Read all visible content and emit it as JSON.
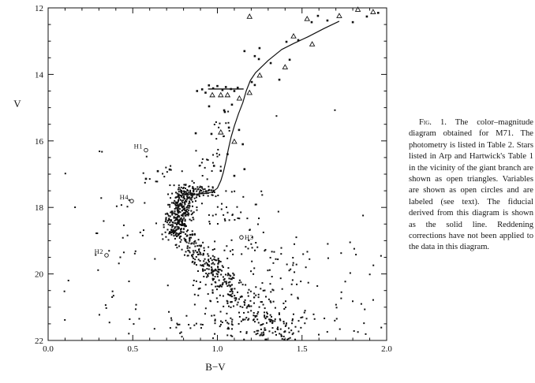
{
  "figure": {
    "caption_label": "Fig. 1.",
    "caption_text": "The color–magnitude diagram obtained for M71. The photometry is listed in Table 2. Stars listed in Arp and Hartwick's Table 1 in the vicinity of the giant branch are shown as open triangles. Variables are shown as open circles and are labeled (see text). The fiducial derived from this diagram is shown as the solid line. Reddening corrections have not been applied to the data in this diagram."
  },
  "chart_data": {
    "type": "scatter",
    "title": "",
    "xlabel": "B−V",
    "ylabel": "V",
    "xlim": [
      0.0,
      2.0
    ],
    "ylim": [
      22,
      12
    ],
    "grid": false,
    "marker_color": "#111111",
    "x_major_values": [
      0.0,
      0.5,
      1.0,
      1.5,
      2.0
    ],
    "x_major_labels": [
      "0.0",
      "0.5",
      "1.0",
      "1.5",
      "2.0"
    ],
    "x_minor_step": 0.1,
    "y_major_values": [
      12,
      14,
      16,
      18,
      20,
      22
    ],
    "y_major_labels": [
      "12",
      "14",
      "16",
      "18",
      "20",
      "22"
    ],
    "y_minor_step": 0.5,
    "fiducial_line": [
      [
        0.87,
        17.6
      ],
      [
        0.93,
        17.58
      ],
      [
        0.97,
        17.54
      ],
      [
        1.0,
        17.42
      ],
      [
        1.02,
        17.2
      ],
      [
        1.035,
        16.95
      ],
      [
        1.05,
        16.62
      ],
      [
        1.065,
        16.25
      ],
      [
        1.08,
        15.9
      ],
      [
        1.1,
        15.55
      ],
      [
        1.125,
        15.18
      ],
      [
        1.15,
        14.85
      ],
      [
        1.17,
        14.5
      ],
      [
        1.195,
        14.18
      ],
      [
        1.225,
        13.95
      ],
      [
        1.3,
        13.58
      ],
      [
        1.38,
        13.25
      ],
      [
        1.455,
        13.06
      ],
      [
        1.535,
        12.87
      ],
      [
        1.63,
        12.62
      ],
      [
        1.72,
        12.4
      ]
    ],
    "horizontal_branch_bar": {
      "bv_start": 0.945,
      "bv_end": 1.155,
      "v": 14.44
    },
    "variables": [
      {
        "label": "H1",
        "bv": 0.578,
        "v": 16.28,
        "label_side": "left"
      },
      {
        "label": "H4",
        "bv": 0.494,
        "v": 17.81,
        "label_side": "left"
      },
      {
        "label": "H2",
        "bv": 0.345,
        "v": 19.44,
        "label_side": "left"
      },
      {
        "label": "H3",
        "bv": 1.142,
        "v": 18.9,
        "label_side": "right"
      }
    ],
    "triangles": [
      [
        1.19,
        12.26
      ],
      [
        1.53,
        12.33
      ],
      [
        1.72,
        12.24
      ],
      [
        1.83,
        12.05
      ],
      [
        1.92,
        12.12
      ],
      [
        1.45,
        12.85
      ],
      [
        1.56,
        13.09
      ],
      [
        1.4,
        13.78
      ],
      [
        1.25,
        14.03
      ],
      [
        1.19,
        14.55
      ],
      [
        0.97,
        14.62
      ],
      [
        1.02,
        14.62
      ],
      [
        1.06,
        14.62
      ],
      [
        1.13,
        14.72
      ],
      [
        1.02,
        15.74
      ],
      [
        1.1,
        16.02
      ]
    ],
    "giant_points": [
      [
        1.557,
        12.43
      ],
      [
        1.594,
        12.24
      ],
      [
        1.65,
        12.38
      ],
      [
        1.8,
        12.43
      ],
      [
        1.883,
        12.26
      ],
      [
        1.95,
        12.15
      ],
      [
        1.478,
        12.97
      ],
      [
        1.408,
        13.02
      ],
      [
        1.249,
        13.21
      ],
      [
        1.315,
        13.66
      ],
      [
        1.427,
        13.56
      ],
      [
        1.366,
        14.16
      ],
      [
        1.221,
        13.45
      ],
      [
        1.245,
        13.54
      ],
      [
        1.203,
        14.23
      ],
      [
        1.221,
        14.32
      ],
      [
        1.16,
        13.3
      ],
      [
        0.88,
        14.5
      ],
      [
        0.91,
        14.45
      ],
      [
        0.93,
        14.55
      ],
      [
        0.95,
        14.33
      ],
      [
        0.975,
        14.42
      ],
      [
        1.0,
        14.35
      ],
      [
        1.03,
        14.47
      ],
      [
        1.05,
        14.38
      ],
      [
        1.08,
        14.44
      ],
      [
        1.1,
        14.5
      ],
      [
        1.12,
        14.4
      ],
      [
        0.951,
        14.96
      ],
      [
        1.04,
        15.08
      ],
      [
        1.086,
        14.91
      ],
      [
        1.044,
        15.13
      ],
      [
        1.068,
        15.6
      ],
      [
        0.872,
        15.77
      ],
      [
        0.965,
        15.79
      ],
      [
        1.128,
        15.67
      ],
      [
        1.15,
        16.1
      ],
      [
        1.06,
        16.4
      ],
      [
        0.98,
        16.75
      ],
      [
        1.02,
        16.9
      ],
      [
        0.648,
        16.91
      ],
      [
        0.718,
        16.86
      ],
      [
        0.578,
        17.14
      ],
      [
        1.1,
        17.05
      ],
      [
        1.16,
        16.85
      ]
    ],
    "scatter_seed": 7,
    "scatter_clusters": [
      {
        "name": "turnoff-ridge",
        "kind": "band",
        "from": [
          0.82,
          17.45
        ],
        "to": [
          0.745,
          18.85
        ],
        "sigma_bv": 0.038,
        "sigma_v": 0.1,
        "count": 330
      },
      {
        "name": "subgiant-shelf",
        "kind": "band",
        "from": [
          0.8,
          17.52
        ],
        "to": [
          0.97,
          17.5
        ],
        "sigma_bv": 0.02,
        "sigma_v": 0.07,
        "count": 65
      },
      {
        "name": "main-sequence-upper",
        "kind": "band",
        "from": [
          0.78,
          18.8
        ],
        "to": [
          1.05,
          20.3
        ],
        "sigma_bv": 0.045,
        "sigma_v": 0.15,
        "count": 200
      },
      {
        "name": "main-sequence-lower",
        "kind": "band",
        "from": [
          1.03,
          20.2
        ],
        "to": [
          1.36,
          21.9
        ],
        "sigma_bv": 0.06,
        "sigma_v": 0.2,
        "count": 150
      },
      {
        "name": "ms-halo",
        "kind": "box",
        "bv": [
          0.85,
          1.55
        ],
        "v": [
          19.2,
          21.9
        ],
        "count": 130
      },
      {
        "name": "lower-right-field",
        "kind": "box",
        "bv": [
          1.25,
          1.98
        ],
        "v": [
          19.0,
          21.9
        ],
        "count": 60
      },
      {
        "name": "left-field",
        "kind": "box",
        "bv": [
          0.28,
          0.72
        ],
        "v": [
          17.6,
          21.8
        ],
        "count": 38
      },
      {
        "name": "far-left-sparse",
        "kind": "box",
        "bv": [
          0.03,
          0.45
        ],
        "v": [
          16.2,
          21.9
        ],
        "count": 12
      },
      {
        "name": "rgb-scatter",
        "kind": "band",
        "from": [
          0.9,
          17.35
        ],
        "to": [
          1.07,
          15.05
        ],
        "sigma_bv": 0.03,
        "sigma_v": 0.15,
        "count": 26
      },
      {
        "name": "above-turnoff-sparse",
        "kind": "box",
        "bv": [
          0.55,
          0.95
        ],
        "v": [
          16.25,
          17.35
        ],
        "count": 22
      },
      {
        "name": "bottom-edge",
        "kind": "box",
        "bv": [
          0.7,
          1.45
        ],
        "v": [
          21.25,
          21.95
        ],
        "count": 55
      },
      {
        "name": "right-of-turnoff",
        "kind": "box",
        "bv": [
          0.95,
          1.3
        ],
        "v": [
          17.5,
          19.2
        ],
        "count": 48
      },
      {
        "name": "right-mid-sparse",
        "kind": "box",
        "bv": [
          1.3,
          1.95
        ],
        "v": [
          14.9,
          18.9
        ],
        "count": 5
      }
    ]
  }
}
